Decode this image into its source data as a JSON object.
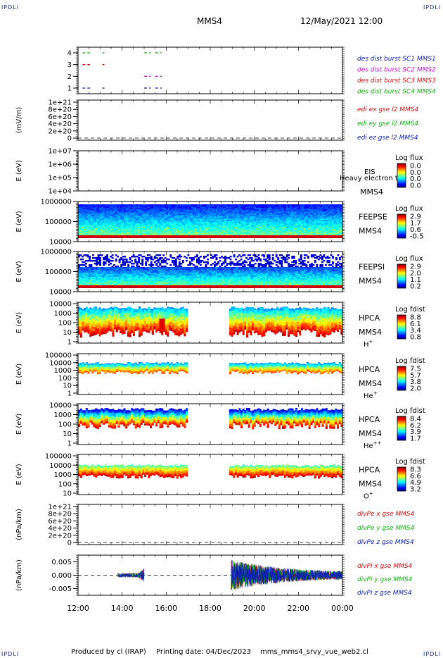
{
  "corners": {
    "tl": "IPDLI",
    "tr": "IPDLI",
    "bl": "IPDLI",
    "br": "IPDLI"
  },
  "header": {
    "title": "MMS4",
    "datetime": "12/May/2021 12:00"
  },
  "footer": {
    "produced_by": "Produced by cl (IRAP)",
    "printing_date": "Printing date: 04/Dec/2023",
    "filename": "mms_mms4_srvy_vue_web2.cl"
  },
  "colors": {
    "red": "#d01010",
    "green": "#10b010",
    "blue": "#1020b0",
    "magenta": "#d010d0"
  },
  "chart_data": [
    {
      "id": "burst",
      "type": "scatter",
      "x_range": [
        "12:00",
        "00:00"
      ],
      "yticks": [
        "1",
        "2",
        "3",
        "4"
      ],
      "legend": [
        {
          "label": "des dist burst SC1 MMS1",
          "color": "#1020b0"
        },
        {
          "label": "des dist burst SC2 MMS2",
          "color": "#d010d0"
        },
        {
          "label": "des dist burst SC3 MMS3",
          "color": "#d01010"
        },
        {
          "label": "des dist burst SC4 MMS4",
          "color": "#10b010"
        }
      ],
      "segments": [
        {
          "y": 4,
          "color": "#10b010",
          "x": [
            12.2,
            12.6
          ]
        },
        {
          "y": 4,
          "color": "#10b010",
          "x": [
            13.1,
            13.2
          ]
        },
        {
          "y": 4,
          "color": "#10b010",
          "x": [
            15.0,
            15.3
          ]
        },
        {
          "y": 4,
          "color": "#10b010",
          "x": [
            15.5,
            15.8
          ]
        },
        {
          "y": 3,
          "color": "#d01010",
          "x": [
            12.2,
            12.6
          ]
        },
        {
          "y": 3,
          "color": "#d01010",
          "x": [
            13.1,
            13.2
          ]
        },
        {
          "y": 2,
          "color": "#d010d0",
          "x": [
            15.0,
            15.3
          ]
        },
        {
          "y": 2,
          "color": "#d010d0",
          "x": [
            15.5,
            15.8
          ]
        },
        {
          "y": 1,
          "color": "#1020b0",
          "x": [
            12.2,
            12.6
          ]
        },
        {
          "y": 1,
          "color": "#1020b0",
          "x": [
            13.1,
            13.2
          ]
        },
        {
          "y": 1,
          "color": "#1020b0",
          "x": [
            15.0,
            15.3
          ]
        },
        {
          "y": 1,
          "color": "#1020b0",
          "x": [
            15.5,
            15.8
          ]
        }
      ]
    },
    {
      "id": "edi",
      "type": "line",
      "ylabel": "(mV/m)",
      "yticks": [
        "0",
        "2e+20",
        "4e+20",
        "6e+20",
        "8e+20",
        "1e+21"
      ],
      "legend": [
        {
          "label": "edi ex gse l2 MMS4",
          "color": "#d01010"
        },
        {
          "label": "edi ey gse l2 MMS4",
          "color": "#10b010"
        },
        {
          "label": "edi ez gse l2 MMS4",
          "color": "#1020b0"
        }
      ]
    },
    {
      "id": "eis",
      "type": "heatmap",
      "ylabel": "E (eV)",
      "yticks": [
        "1e+04",
        "1e+05",
        "1e+06",
        "1e+07"
      ],
      "side": [
        "EIS",
        "MMS4"
      ],
      "overlay": "Heavy electron to",
      "cbar_title": "Log flux",
      "cbar_ticks": [
        "0.0",
        "0.0",
        "0.0",
        "0.0"
      ]
    },
    {
      "id": "feepse",
      "type": "heatmap",
      "ylabel": "E (eV)",
      "yticks": [
        "10000",
        "100000",
        "1000000"
      ],
      "side": [
        "FEEPSE",
        "MMS4"
      ],
      "cbar_title": "Log flux",
      "cbar_ticks": [
        "2.9",
        "1.7",
        "0.6",
        "-0.5"
      ]
    },
    {
      "id": "feepsi",
      "type": "heatmap",
      "ylabel": "E (eV)",
      "yticks": [
        "10000",
        "100000",
        "1000000"
      ],
      "side": [
        "FEEPSI",
        "MMS4"
      ],
      "cbar_title": "Log flux",
      "cbar_ticks": [
        "2.9",
        "2.0",
        "1.1",
        "0.2"
      ]
    },
    {
      "id": "hpca_h",
      "type": "heatmap",
      "ylabel": "E (eV)",
      "yticks": [
        "1",
        "10",
        "100",
        "1000",
        "10000"
      ],
      "side": [
        "HPCA",
        "MMS4"
      ],
      "species": "H",
      "sup": "+",
      "cbar_title": "Log fdist",
      "cbar_ticks": [
        "8.8",
        "6.1",
        "3.4",
        "0.8"
      ]
    },
    {
      "id": "hpca_he",
      "type": "heatmap",
      "ylabel": "E (eV)",
      "yticks": [
        "1",
        "10",
        "100",
        "1000",
        "10000",
        "100000"
      ],
      "side": [
        "HPCA",
        "MMS4"
      ],
      "species": "He",
      "sup": "+",
      "cbar_title": "Log fdist",
      "cbar_ticks": [
        "7.5",
        "5.7",
        "3.8",
        "2.0"
      ]
    },
    {
      "id": "hpca_hepp",
      "type": "heatmap",
      "ylabel": "E (eV)",
      "yticks": [
        "1",
        "10",
        "100",
        "1000",
        "10000"
      ],
      "side": [
        "HPCA",
        "MMS4"
      ],
      "species": "He",
      "sup": "++",
      "cbar_title": "Log fdist",
      "cbar_ticks": [
        "8.4",
        "6.2",
        "3.9",
        "1.7"
      ]
    },
    {
      "id": "hpca_o",
      "type": "heatmap",
      "ylabel": "E (eV)",
      "yticks": [
        "10",
        "100",
        "1000",
        "10000",
        "100000"
      ],
      "side": [
        "HPCA",
        "MMS4"
      ],
      "species": "O",
      "sup": "+",
      "cbar_title": "Log fdist",
      "cbar_ticks": [
        "8.3",
        "6.6",
        "4.9",
        "3.2"
      ]
    },
    {
      "id": "divpe",
      "type": "line",
      "ylabel": "(nPa/km)",
      "yticks": [
        "0",
        "2e+20",
        "4e+20",
        "6e+20",
        "8e+20",
        "1e+21"
      ],
      "legend": [
        {
          "label": "divPe x gse MMS4",
          "color": "#d01010"
        },
        {
          "label": "divPe y gse MMS4",
          "color": "#10b010"
        },
        {
          "label": "divPe z gse MMS4",
          "color": "#1020b0"
        }
      ]
    },
    {
      "id": "divpi",
      "type": "line",
      "ylabel": "(nPa/km)",
      "yticks": [
        "-0.005",
        "0.000",
        "0.005"
      ],
      "legend": [
        {
          "label": "divPi x gse MMS4",
          "color": "#d01010"
        },
        {
          "label": "divPi y gse MMS4",
          "color": "#10b010"
        },
        {
          "label": "divPi z gse MMS4",
          "color": "#1020b0"
        }
      ]
    }
  ],
  "xaxis": {
    "ticks": [
      "12:00",
      "14:00",
      "16:00",
      "18:00",
      "20:00",
      "22:00",
      "00:00"
    ]
  }
}
